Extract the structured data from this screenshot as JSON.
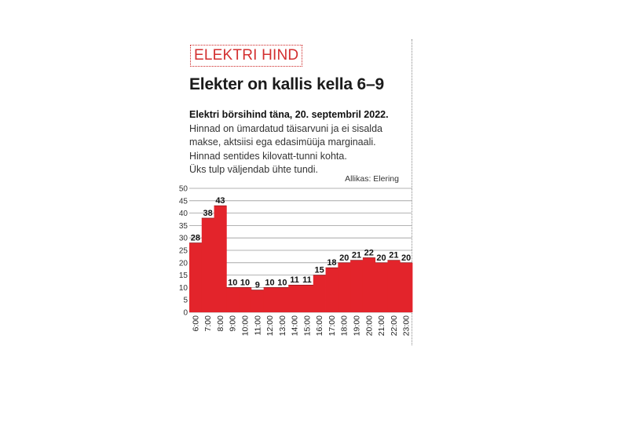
{
  "article": {
    "kicker": "ELEKTRI HIND",
    "headline": "Elekter on kallis kella 6–9",
    "lead": "Elektri börsihind täna, 20. septembril 2022.",
    "description": [
      "Hinnad on ümardatud täisarvuni ja ei sisalda",
      "makse, aktsiisi ega edasimüüja marginaali.",
      "Hinnad sentides kilovatt-tunni kohta.",
      "Üks tulp väljendab ühte tundi."
    ],
    "source": "Allikas: Elering"
  },
  "colors": {
    "bar": "#e3242b",
    "kicker": "#d32f2f",
    "grid": "#9a9a9a"
  },
  "chart_data": {
    "type": "bar",
    "categories": [
      "6:00",
      "7:00",
      "8:00",
      "9:00",
      "10:00",
      "11:00",
      "12:00",
      "13:00",
      "14:00",
      "15:00",
      "16:00",
      "17:00",
      "18:00",
      "19:00",
      "20:00",
      "21:00",
      "22:00",
      "23:00"
    ],
    "values": [
      28,
      38,
      43,
      10,
      10,
      9,
      10,
      10,
      11,
      11,
      15,
      18,
      20,
      21,
      22,
      20,
      21,
      20
    ],
    "data_labels": [
      "28",
      "38",
      "43",
      "10",
      "10",
      "9",
      "10",
      "10",
      "11",
      "11",
      "15",
      "18",
      "20",
      "21",
      "22",
      "20",
      "21",
      "20"
    ],
    "yticks": [
      "0",
      "5",
      "10",
      "15",
      "20",
      "25",
      "30",
      "35",
      "40",
      "45",
      "50"
    ],
    "ylim": [
      0,
      50
    ],
    "title": "",
    "xlabel": "",
    "ylabel": "",
    "grid": true,
    "legend": "none"
  }
}
